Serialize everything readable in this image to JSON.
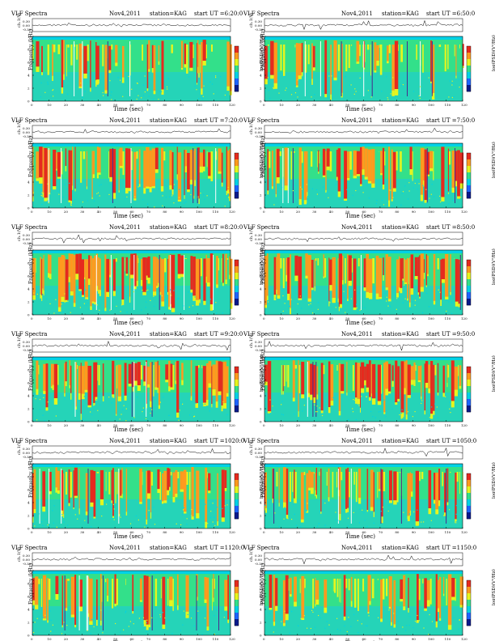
{
  "page": {
    "header_left": "VLF Spectra",
    "station_label": "station=KAG",
    "ch_axis_label": "ch.1(V)",
    "freq_axis_label": "Frequency (kHz)",
    "x_axis_label": "Time (sec)",
    "colorbar_label": "log(PSD)(V²/Hz)",
    "ch_ticks": [
      "0.30",
      "0.00",
      "-0.30"
    ],
    "freq_ticks": [
      "0",
      "2",
      "4",
      "6",
      "8",
      "10"
    ],
    "time_ticks": [
      "0",
      "10",
      "20",
      "30",
      "40",
      "50",
      "60",
      "70",
      "80",
      "90",
      "100",
      "110",
      "120"
    ]
  },
  "panels": [
    {
      "date": "Nov4,2011",
      "start": "start  UT  =6:20:0",
      "density": 0.3
    },
    {
      "date": "Nov4,2011",
      "start": "start  UT  =6:50:0",
      "density": 0.28
    },
    {
      "date": "Nov4,2011",
      "start": "start  UT  =7:20:0",
      "density": 0.62
    },
    {
      "date": "Nov4,2011",
      "start": "start  UT  =7:50:0",
      "density": 0.6
    },
    {
      "date": "Nov4,2011",
      "start": "start  UT  =8:20:0",
      "density": 0.7
    },
    {
      "date": "Nov4,2011",
      "start": "start  UT  =8:50:0",
      "density": 0.55
    },
    {
      "date": "Nov4,2011",
      "start": "start  UT  =9:20:0",
      "density": 0.58
    },
    {
      "date": "Nov4,2011",
      "start": "start  UT  =9:50:0",
      "density": 0.55
    },
    {
      "date": "Nov4,2011",
      "start": "start  UT  =1020:0",
      "density": 0.42
    },
    {
      "date": "Nov4,2011",
      "start": "start  UT  =1050:0",
      "density": 0.4
    },
    {
      "date": "Nov4,2011",
      "start": "start  UT  =1120:0",
      "density": 0.38
    },
    {
      "date": "Nov4,2011",
      "start": "start  UT  =1150:0",
      "density": 0.36
    }
  ],
  "chart_data": {
    "type": "heatmap",
    "title": "VLF Spectra",
    "xlabel": "Time (sec)",
    "ylabel": "Frequency (kHz)",
    "xlim": [
      0,
      120
    ],
    "ylim": [
      0,
      10
    ],
    "colorbar": "log(PSD)(V²/Hz)",
    "colors": [
      "#0a1a8c",
      "#1e64ff",
      "#00d2e6",
      "#33e08a",
      "#e6f51e",
      "#ff9a1e",
      "#e62a1e",
      "#ffffff"
    ]
  }
}
